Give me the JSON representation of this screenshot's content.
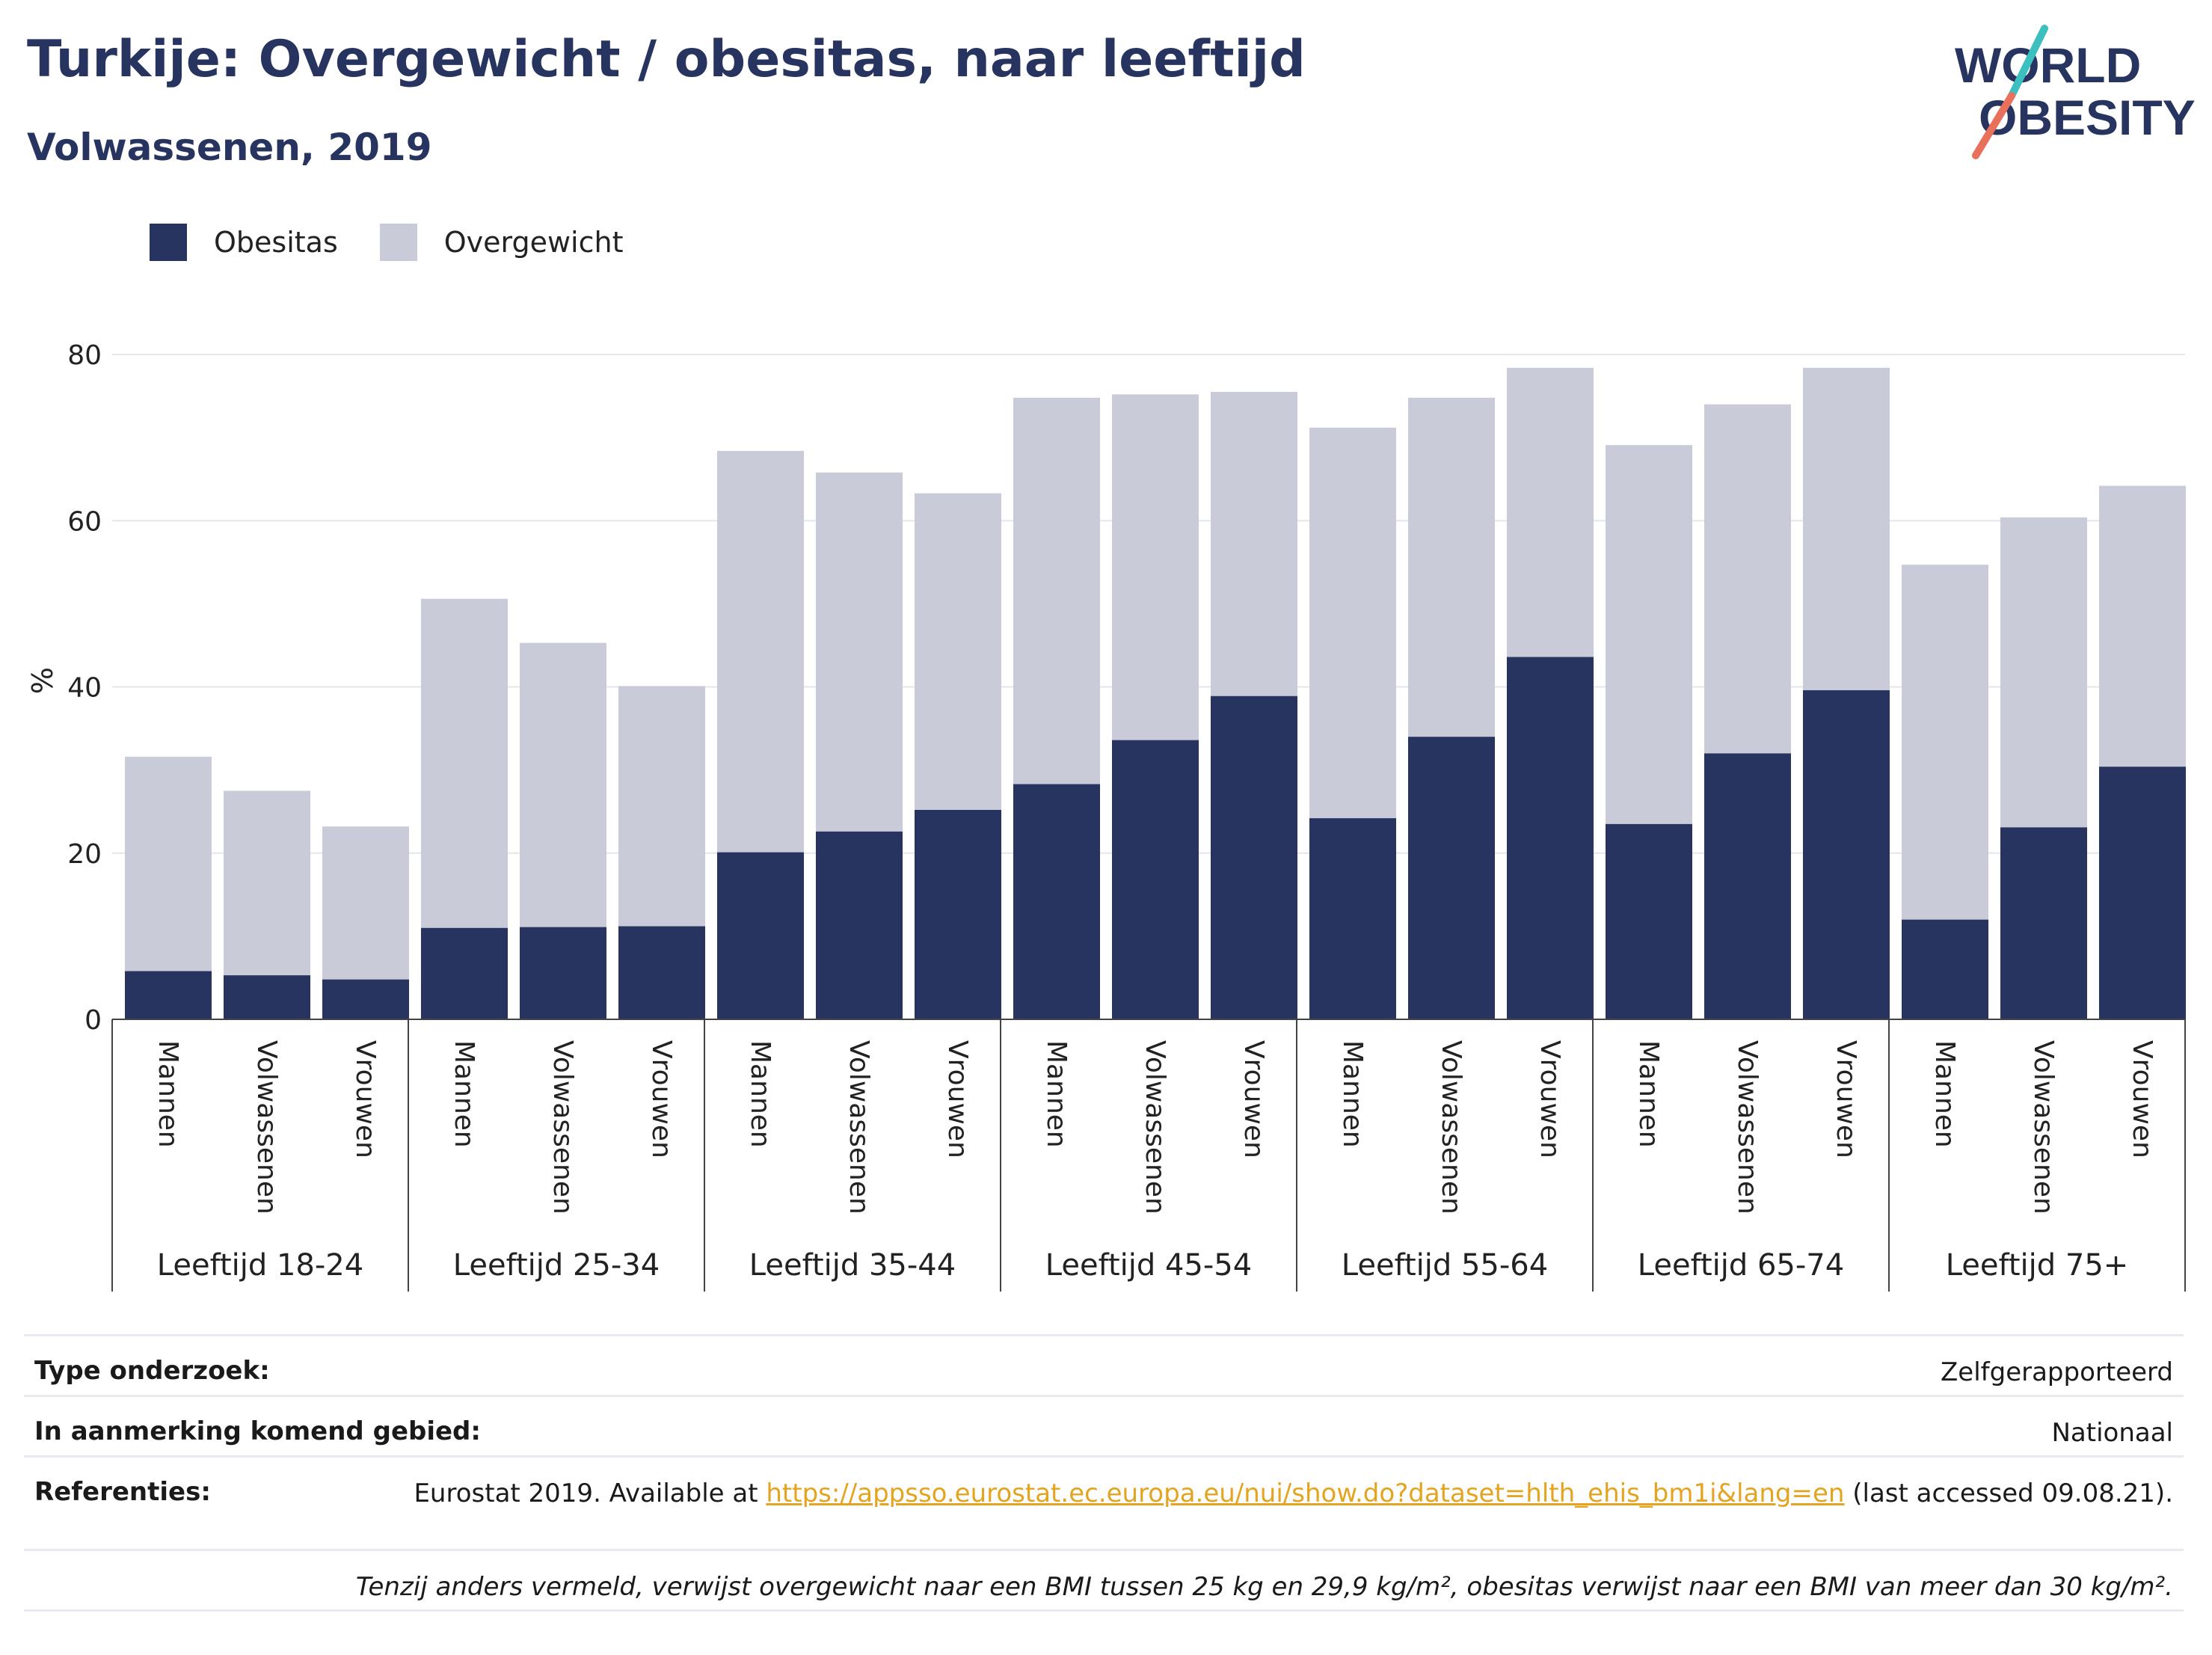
{
  "header": {
    "title": "Turkije: Overgewicht / obesitas, naar leeftijd",
    "subtitle": "Volwassenen, 2019"
  },
  "logo": {
    "line1": "WORLD",
    "line2": "OBESITY"
  },
  "colors": {
    "obesitas": "#283460",
    "overgewicht": "#c9ccd8",
    "accent": "#283460",
    "link": "#e5a41f",
    "logo_teal": "#3bbfbf",
    "logo_coral": "#e9705a"
  },
  "chart_data": {
    "type": "bar",
    "stacked": true,
    "ylabel": "%",
    "ylim": [
      0,
      80
    ],
    "yticks": [
      0,
      20,
      40,
      60,
      80
    ],
    "grid": true,
    "legend_position": "top-left",
    "legend": [
      "Obesitas",
      "Overgewicht"
    ],
    "subcategories": [
      "Mannen",
      "Volwassenen",
      "Vrouwen"
    ],
    "groups": [
      "Leeftijd 18-24",
      "Leeftijd 25-34",
      "Leeftijd 35-44",
      "Leeftijd 45-54",
      "Leeftijd 55-64",
      "Leeftijd 65-74",
      "Leeftijd 75+"
    ],
    "series": [
      {
        "name": "Obesitas",
        "values": [
          5.8,
          5.3,
          4.8,
          11.0,
          11.1,
          11.2,
          20.1,
          22.6,
          25.2,
          28.3,
          33.6,
          38.9,
          24.2,
          34.0,
          43.6,
          23.5,
          32.0,
          39.6,
          12.0,
          23.1,
          30.4
        ]
      },
      {
        "name": "Overgewicht",
        "values": [
          25.8,
          22.2,
          18.4,
          39.6,
          34.2,
          28.9,
          48.3,
          43.2,
          38.1,
          46.5,
          41.6,
          36.6,
          47.0,
          40.8,
          34.8,
          45.6,
          42.0,
          38.8,
          42.7,
          37.3,
          33.8
        ]
      }
    ]
  },
  "meta": {
    "type_label": "Type onderzoek:",
    "type_value": "Zelfgerapporteerd",
    "area_label": "In aanmerking komend gebied:",
    "area_value": "Nationaal",
    "ref_label": "Referenties:",
    "ref_prefix": "Eurostat 2019. Available at ",
    "ref_link": "https://appsso.eurostat.ec.europa.eu/nui/show.do?dataset=hlth_ehis_bm1i&lang=en",
    "ref_suffix": " (last accessed 09.08.21).",
    "note": "Tenzij anders vermeld, verwijst overgewicht naar een BMI tussen 25 kg en 29,9 kg/m², obesitas verwijst naar een BMI van meer dan 30 kg/m²."
  }
}
